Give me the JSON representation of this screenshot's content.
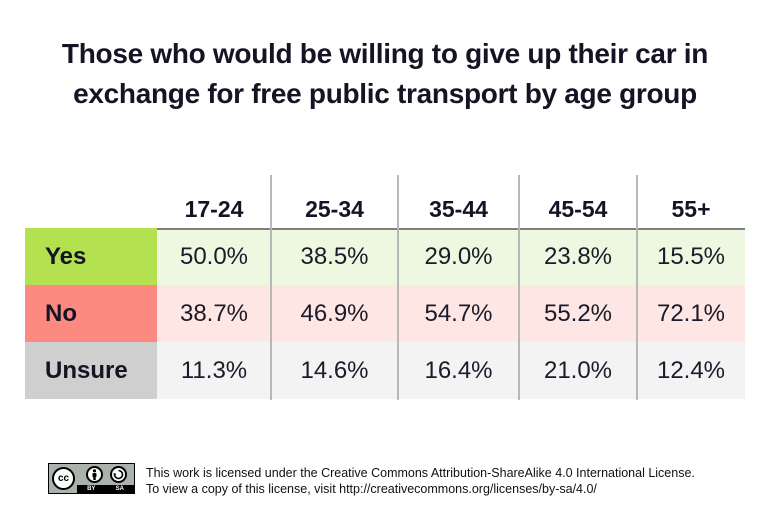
{
  "chart_data": {
    "type": "table",
    "title": "Those who would be willing to give up their car in exchange for free public transport by age group",
    "title_lines": [
      "Those who would be willing to give up their car in",
      "exchange for free public transport by age group"
    ],
    "columns": [
      "17-24",
      "25-34",
      "35-44",
      "45-54",
      "55+"
    ],
    "rows": [
      {
        "label": "Yes",
        "values": [
          "50.0%",
          "38.5%",
          "29.0%",
          "23.8%",
          "15.5%"
        ],
        "label_color": "#b4e150",
        "cell_color": "#eef8e0"
      },
      {
        "label": "No",
        "values": [
          "38.7%",
          "46.9%",
          "54.7%",
          "55.2%",
          "72.1%"
        ],
        "label_color": "#fd8a80",
        "cell_color": "#fde6e4"
      },
      {
        "label": "Unsure",
        "values": [
          "11.3%",
          "14.6%",
          "16.4%",
          "21.0%",
          "12.4%"
        ],
        "label_color": "#cfcfcf",
        "cell_color": "#f3f3f3"
      }
    ],
    "units": "percent"
  },
  "license": {
    "badge_left": "cc",
    "badge_by": "BY",
    "badge_sa": "SA",
    "line1": "This work is licensed under the Creative Commons Attribution-ShareAlike 4.0 International License.",
    "line2": "To view a copy of this license, visit http://creativecommons.org/licenses/by-sa/4.0/"
  }
}
